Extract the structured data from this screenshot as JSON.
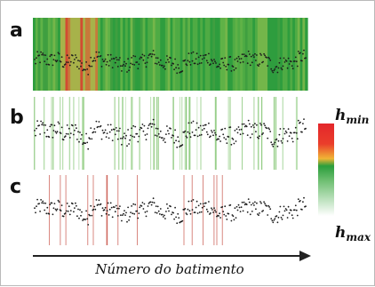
{
  "chart_data": {
    "type": "scatter",
    "description_panels": [
      {
        "label": "a",
        "background": "heat-strips"
      },
      {
        "label": "b",
        "background": "green-lines"
      },
      {
        "label": "c",
        "background": "red-lines"
      }
    ],
    "xlabel": "Número do batimento",
    "colorbar": {
      "top_label": {
        "base": "h",
        "sub": "min"
      },
      "bottom_label": {
        "base": "h",
        "sub": "max"
      },
      "colors": [
        "#e3262b",
        "#f0b535",
        "#2a9e3c",
        "#9bd29f",
        "#ffffff"
      ]
    },
    "n_beats": 300,
    "series_note": "RR-like beat-to-beat series (dotted trace)",
    "panels": {
      "a": {
        "strip_colors": [
          "#2e9d3e",
          "#4fab44",
          "#74b64a",
          "#a7b24a",
          "#c77a3a",
          "#d24b32",
          "#3f9f40",
          "#5fb247"
        ]
      },
      "b": {
        "line_color": "#7cc26a"
      },
      "c": {
        "line_color": "#c0392b"
      }
    }
  },
  "colors": {
    "dots": "#1c1c1c",
    "axis": "#222222"
  }
}
